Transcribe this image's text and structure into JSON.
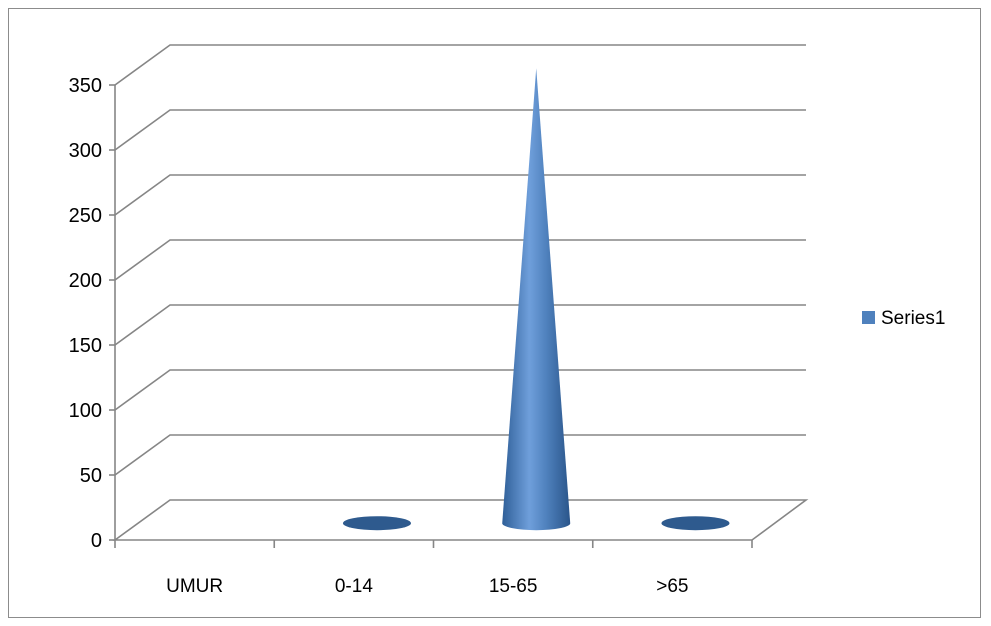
{
  "chart_data": {
    "type": "bar",
    "bar_shape": "cone",
    "three_d": true,
    "categories": [
      "UMUR",
      "0-14",
      "15-65",
      ">65"
    ],
    "series": [
      {
        "name": "Series1",
        "values": [
          null,
          1,
          350,
          1
        ]
      }
    ],
    "ylim": [
      0,
      350
    ],
    "yticks": [
      0,
      50,
      100,
      150,
      200,
      250,
      300,
      350
    ],
    "grid": true,
    "legend_position": "right",
    "title": "",
    "xlabel": "",
    "ylabel": ""
  },
  "colors": {
    "series1": "#4f81bd",
    "series1_dark": "#2e5a8e",
    "gridline": "#868686",
    "frame": "#8c8c8c"
  }
}
